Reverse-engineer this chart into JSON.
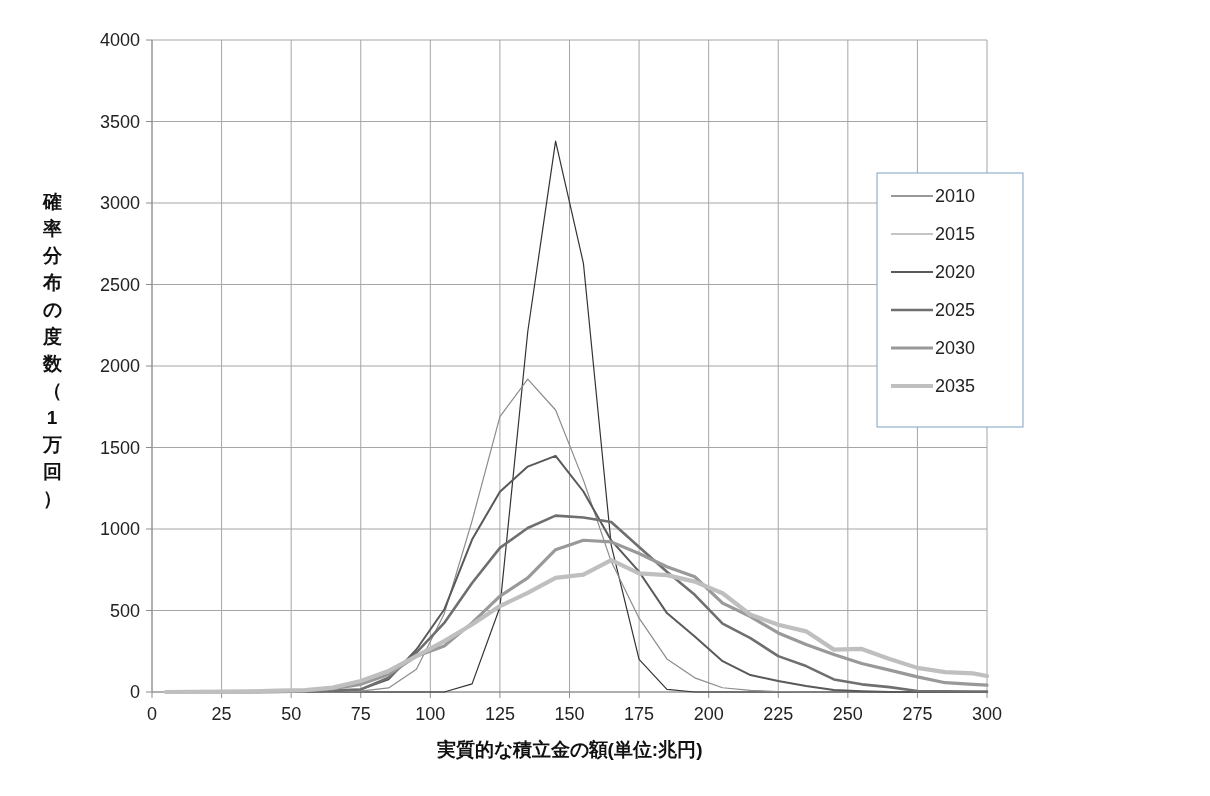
{
  "chart_data": {
    "type": "line",
    "xlabel": "実質的な積立金の額(単位:兆円)",
    "ylabel": "確率分布の度数（1万回）",
    "x": [
      5,
      15,
      25,
      35,
      45,
      55,
      65,
      75,
      85,
      95,
      105,
      115,
      125,
      135,
      145,
      155,
      165,
      175,
      185,
      195,
      205,
      215,
      225,
      235,
      245,
      255,
      265,
      275,
      285,
      295,
      300
    ],
    "xlim": [
      0,
      300
    ],
    "xticks": [
      0,
      25,
      50,
      75,
      100,
      125,
      150,
      175,
      200,
      225,
      250,
      275,
      300
    ],
    "ylim": [
      0,
      4000
    ],
    "yticks": [
      0,
      500,
      1000,
      1500,
      2000,
      2500,
      3000,
      3500,
      4000
    ],
    "grid": true,
    "legend": "top right",
    "marker": "none",
    "line_style": "solid",
    "series": [
      {
        "name": "2010",
        "color": "#333333",
        "values": [
          0,
          0,
          0,
          0,
          0,
          0,
          0,
          0,
          0,
          0,
          0,
          50,
          520,
          2210,
          3380,
          2630,
          900,
          200,
          16,
          0,
          0,
          0,
          0,
          0,
          0,
          0,
          0,
          0,
          0,
          0,
          0
        ]
      },
      {
        "name": "2015",
        "color": "#8c8c8c",
        "values": [
          0,
          0,
          0,
          0,
          0,
          0,
          0,
          5,
          25,
          140,
          480,
          1050,
          1690,
          1920,
          1730,
          1300,
          800,
          453,
          203,
          87,
          26,
          10,
          3,
          0,
          0,
          0,
          0,
          0,
          0,
          0,
          0
        ]
      },
      {
        "name": "2020",
        "color": "#595959",
        "values": [
          0,
          0,
          0,
          0,
          1,
          3,
          8,
          16,
          78,
          261,
          506,
          935,
          1229,
          1383,
          1449,
          1230,
          930,
          738,
          484,
          341,
          189,
          104,
          67,
          37,
          12,
          5,
          0,
          0,
          0,
          0,
          0
        ]
      },
      {
        "name": "2025",
        "color": "#6f6f6f",
        "values": [
          0,
          0,
          0,
          0,
          1,
          4,
          10,
          15,
          88,
          241,
          424,
          669,
          884,
          1006,
          1082,
          1071,
          1043,
          890,
          738,
          596,
          419,
          331,
          220,
          159,
          77,
          47,
          30,
          6,
          5,
          3,
          3
        ]
      },
      {
        "name": "2030",
        "color": "#999999",
        "values": [
          0,
          0,
          0,
          1,
          3,
          8,
          20,
          47,
          108,
          220,
          282,
          424,
          588,
          700,
          873,
          931,
          921,
          850,
          768,
          707,
          545,
          463,
          362,
          291,
          230,
          175,
          134,
          93,
          57,
          47,
          42
        ]
      },
      {
        "name": "2035",
        "color": "#bfbfbf",
        "values": [
          0,
          1,
          2,
          4,
          8,
          12,
          27,
          67,
          129,
          220,
          312,
          414,
          527,
          608,
          700,
          720,
          809,
          728,
          717,
          677,
          606,
          474,
          413,
          372,
          260,
          264,
          203,
          148,
          122,
          114,
          98
        ]
      }
    ]
  }
}
